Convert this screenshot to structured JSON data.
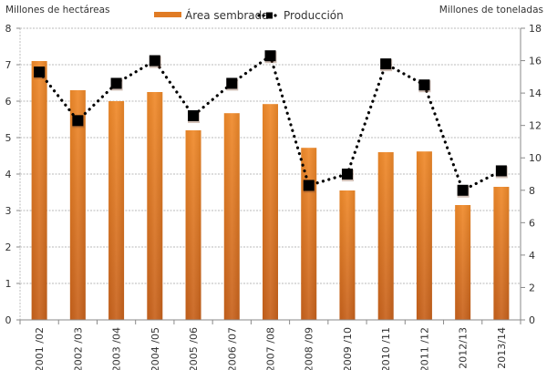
{
  "chart_data": {
    "type": "bar",
    "title": "",
    "categories": [
      "2001 /02",
      "2002 /03",
      "2003 /04",
      "2004 /05",
      "2005 /06",
      "2006 /07",
      "2007 /08",
      "2008 /09",
      "2009 /10",
      "2010 /11",
      "2011 /12",
      "2012/13",
      "2013/14"
    ],
    "series": [
      {
        "name": "Área sembrada",
        "type": "bar",
        "axis": "left",
        "color": "#e07b24",
        "values": [
          7.1,
          6.3,
          6.0,
          6.25,
          5.2,
          5.67,
          5.92,
          4.72,
          3.55,
          4.6,
          4.62,
          3.15,
          3.65
        ]
      },
      {
        "name": "Producción",
        "type": "line",
        "style": "dotted-with-square-markers",
        "axis": "right",
        "color": "#000000",
        "values": [
          15.3,
          12.3,
          14.6,
          16.0,
          12.6,
          14.6,
          16.3,
          8.3,
          9.0,
          15.8,
          14.5,
          8.0,
          9.2
        ]
      }
    ],
    "ylabel_left": "Millones de hectáreas",
    "ylabel_right": "Millones de toneladas",
    "ylim_left": [
      0,
      8
    ],
    "ylim_right": [
      0,
      18
    ],
    "yticks_left": [
      "0",
      "1",
      "2",
      "3",
      "4",
      "5",
      "6",
      "7",
      "8"
    ],
    "yticks_right": [
      "0",
      "2",
      "4",
      "6",
      "8",
      "10",
      "12",
      "14",
      "16",
      "18"
    ],
    "grid": true,
    "legend": "top-center"
  }
}
